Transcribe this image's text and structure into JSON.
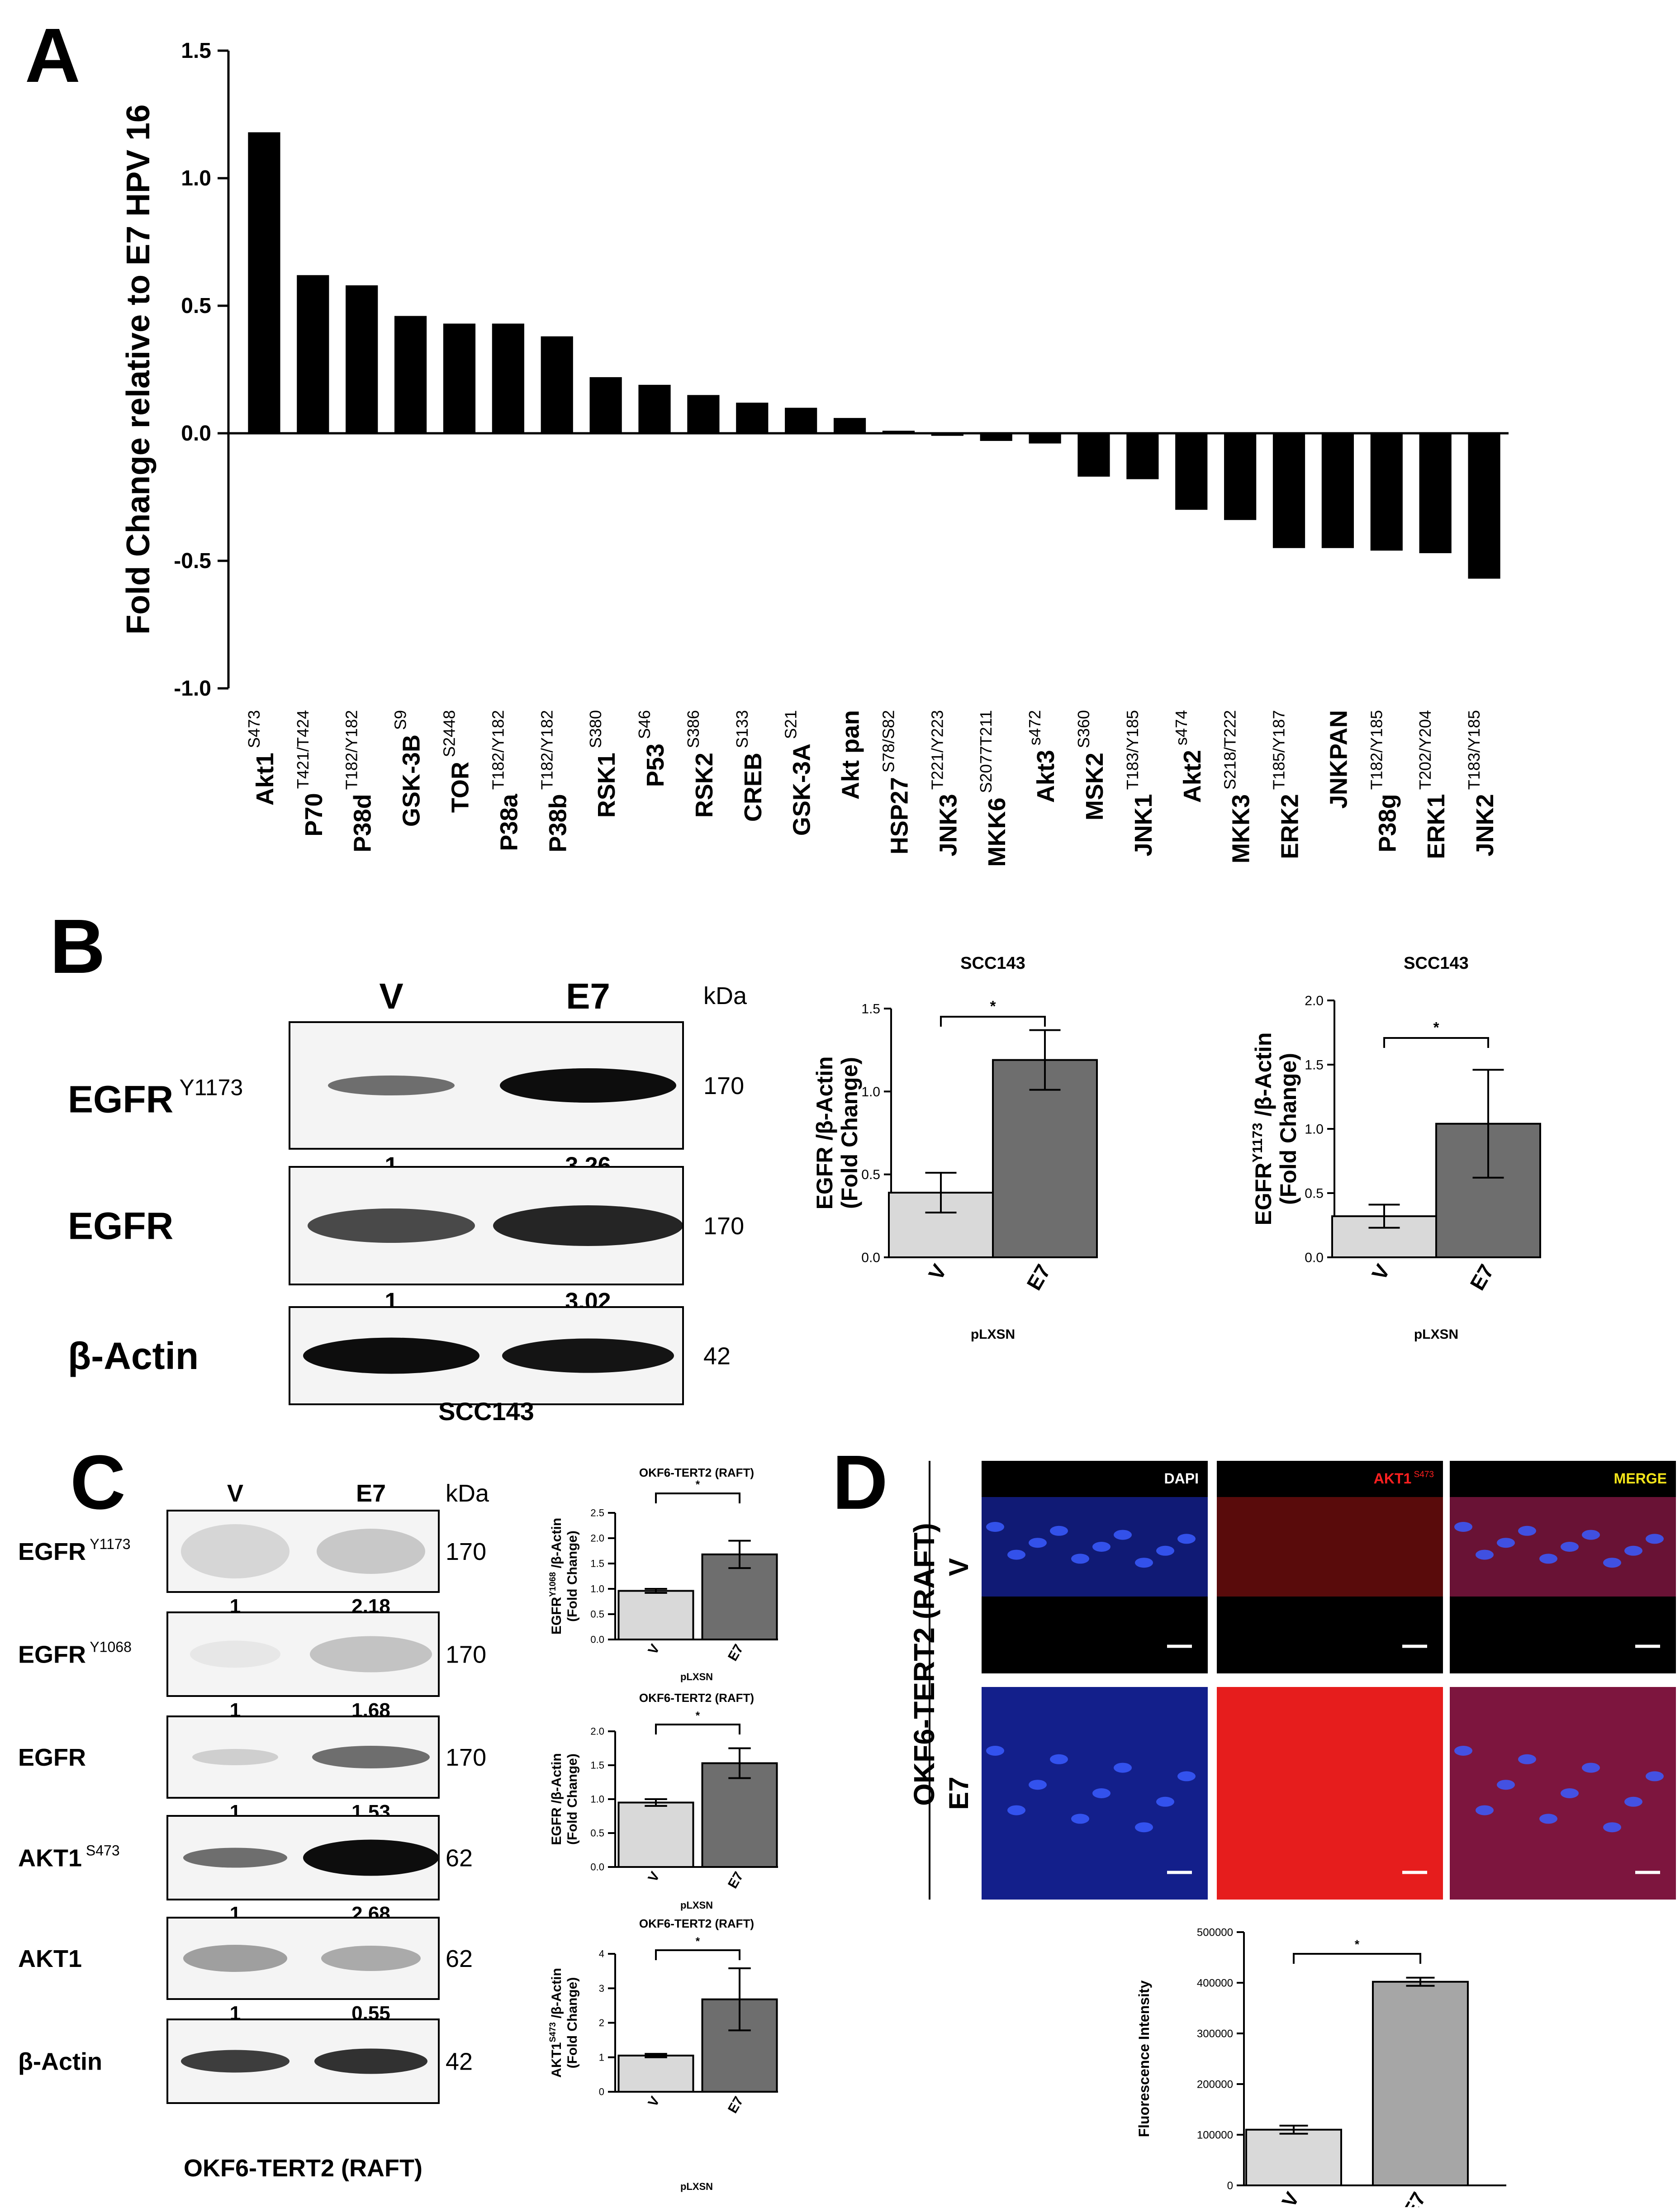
{
  "colors": {
    "bar_black": "#000000",
    "bar_light": "#d9d9d9",
    "bar_dark": "#6e6e6e",
    "bar_mid": "#a6a6a6",
    "dapi": "#1d2fd6",
    "akt_red": "#ff2020",
    "merge_yellow": "#f2e41a"
  },
  "panel_letters": {
    "a": "A",
    "b": "B",
    "c": "C",
    "d": "D"
  },
  "chart_data": [
    {
      "panel": "A",
      "type": "bar",
      "ylabel": "Fold Change relative to E7 HPV 16",
      "ylim": [
        -1.0,
        1.5
      ],
      "yticks": [
        1.5,
        1.0,
        0.5,
        0.0,
        -0.5,
        -1.0
      ],
      "ytick_labels": [
        "1.5",
        "1.0",
        "0.5",
        "0.0",
        "-0.5",
        "-1.0"
      ],
      "categories": [
        {
          "name": "Akt1",
          "site": "S473",
          "value": 1.18
        },
        {
          "name": "P70",
          "site": "T421/T424",
          "value": 0.62
        },
        {
          "name": "P38d",
          "site": "T182/Y182",
          "value": 0.58
        },
        {
          "name": "GSK-3B",
          "site": "S9",
          "value": 0.46
        },
        {
          "name": "TOR",
          "site": "S2448",
          "value": 0.43
        },
        {
          "name": "P38a",
          "site": "T182/Y182",
          "value": 0.43
        },
        {
          "name": "P38b",
          "site": "T182/Y182",
          "value": 0.38
        },
        {
          "name": "RSK1",
          "site": "S380",
          "value": 0.22
        },
        {
          "name": "P53",
          "site": "S46",
          "value": 0.19
        },
        {
          "name": "RSK2",
          "site": "S386",
          "value": 0.15
        },
        {
          "name": "CREB",
          "site": "S133",
          "value": 0.12
        },
        {
          "name": "GSK-3A",
          "site": "S21",
          "value": 0.1
        },
        {
          "name": "Akt pan",
          "site": "",
          "value": 0.06
        },
        {
          "name": "HSP27",
          "site": "S78/S82",
          "value": 0.01
        },
        {
          "name": "JNK3",
          "site": "T221/Y223",
          "value": -0.01
        },
        {
          "name": "MKK6",
          "site": "S2077T211",
          "value": -0.03
        },
        {
          "name": "Akt3",
          "site": "s472",
          "value": -0.04
        },
        {
          "name": "MSK2",
          "site": "S360",
          "value": -0.17
        },
        {
          "name": "JNK1",
          "site": "T183/Y185",
          "value": -0.18
        },
        {
          "name": "Akt2",
          "site": "s474",
          "value": -0.3
        },
        {
          "name": "MKK3",
          "site": "S218/T222",
          "value": -0.34
        },
        {
          "name": "ERK2",
          "site": "T185/Y187",
          "value": -0.45
        },
        {
          "name": "JNKPAN",
          "site": "",
          "value": -0.45
        },
        {
          "name": "P38g",
          "site": "T182/Y185",
          "value": -0.46
        },
        {
          "name": "ERK1",
          "site": "T202/Y204",
          "value": -0.47
        },
        {
          "name": "JNK2",
          "site": "T183/Y185",
          "value": -0.57
        }
      ]
    },
    {
      "panel": "B1",
      "type": "bar",
      "title": "SCC143",
      "ylabel_line1": "EGFR /β-Actin",
      "ylabel_line2": "(Fold Change)",
      "xlabel": "pLXSN",
      "ylim": [
        0,
        1.5
      ],
      "yticks": [
        0,
        0.5,
        1.0,
        1.5
      ],
      "ytick_labels": [
        "0.0",
        "0.5",
        "1.0",
        "1.5"
      ],
      "categories": [
        "V",
        "E7"
      ],
      "values": [
        0.39,
        1.19
      ],
      "errors": [
        0.12,
        0.18
      ],
      "significance": "*"
    },
    {
      "panel": "B2",
      "type": "bar",
      "title": "SCC143",
      "ylabel_line1": "EGFR Y1173 /β-Actin",
      "ylabel_line2": "(Fold Change)",
      "xlabel": "pLXSN",
      "ylim": [
        0,
        2.0
      ],
      "yticks": [
        0,
        0.5,
        1.0,
        1.5,
        2.0
      ],
      "ytick_labels": [
        "0.0",
        "0.5",
        "1.0",
        "1.5",
        "2.0"
      ],
      "categories": [
        "V",
        "E7"
      ],
      "values": [
        0.32,
        1.04
      ],
      "errors": [
        0.09,
        0.42
      ],
      "significance": "*"
    },
    {
      "panel": "C1",
      "type": "bar",
      "title": "OKF6-TERT2 (RAFT)",
      "ylabel_line1": "EGFRY1068 /β-Actin",
      "ylabel_line2": "(Fold Change)",
      "xlabel": "pLXSN",
      "ylim": [
        0,
        2.5
      ],
      "yticks": [
        0,
        0.5,
        1.0,
        1.5,
        2.0,
        2.5
      ],
      "ytick_labels": [
        "0.0",
        "0.5",
        "1.0",
        "1.5",
        "2.0",
        "2.5"
      ],
      "categories": [
        "V",
        "E7"
      ],
      "values": [
        0.96,
        1.68
      ],
      "errors": [
        0.04,
        0.27
      ],
      "significance": "*"
    },
    {
      "panel": "C2",
      "type": "bar",
      "title": "OKF6-TERT2 (RAFT)",
      "ylabel_line1": "EGFR /β-Actin",
      "ylabel_line2": "(Fold Change)",
      "xlabel": "pLXSN",
      "ylim": [
        0,
        2.0
      ],
      "yticks": [
        0,
        0.5,
        1.0,
        1.5,
        2.0
      ],
      "ytick_labels": [
        "0.0",
        "0.5",
        "1.0",
        "1.5",
        "2.0"
      ],
      "categories": [
        "V",
        "E7"
      ],
      "values": [
        0.95,
        1.53
      ],
      "errors": [
        0.05,
        0.22
      ],
      "significance": "*"
    },
    {
      "panel": "C3",
      "type": "bar",
      "title": "OKF6-TERT2 (RAFT)",
      "ylabel_line1": "AKT1S473 /β-Actin",
      "ylabel_line2": "(Fold Change)",
      "xlabel": "pLXSN",
      "ylim": [
        0,
        4
      ],
      "yticks": [
        0,
        1,
        2,
        3,
        4
      ],
      "ytick_labels": [
        "0",
        "1",
        "2",
        "3",
        "4"
      ],
      "categories": [
        "V",
        "E7"
      ],
      "values": [
        1.05,
        2.68
      ],
      "errors": [
        0.05,
        0.9
      ],
      "significance": "*"
    },
    {
      "panel": "D",
      "type": "bar",
      "ylabel_line1": "Fluorescence Intensity",
      "ylabel_line2": "",
      "xlabel": "",
      "ylim": [
        0,
        500000
      ],
      "yticks": [
        0,
        100000,
        200000,
        300000,
        400000,
        500000
      ],
      "ytick_labels": [
        "0",
        "100000",
        "200000",
        "300000",
        "400000",
        "500000"
      ],
      "categories": [
        "V",
        "E7"
      ],
      "values": [
        110000,
        402000
      ],
      "errors": [
        8000,
        8000
      ],
      "significance": "*"
    }
  ],
  "blot_b": {
    "lanes": [
      "V",
      "E7"
    ],
    "kda_label": "kDa",
    "cell_line": "SCC143",
    "rows": [
      {
        "label": "EGFR",
        "sup": "Y1173",
        "kda": "170",
        "quant": [
          "1",
          "3,26"
        ]
      },
      {
        "label": "EGFR",
        "sup": "",
        "kda": "170",
        "quant": [
          "1",
          "3,02"
        ]
      },
      {
        "label": "β-Actin",
        "sup": "",
        "kda": "42",
        "quant": []
      }
    ]
  },
  "blot_c": {
    "lanes": [
      "V",
      "E7"
    ],
    "kda_label": "kDa",
    "cell_line": "OKF6-TERT2 (RAFT)",
    "rows": [
      {
        "label": "EGFR",
        "sup": "Y1173",
        "kda": "170",
        "quant": [
          "1",
          "2,18"
        ]
      },
      {
        "label": "EGFR",
        "sup": "Y1068",
        "kda": "170",
        "quant": [
          "1",
          "1,68"
        ]
      },
      {
        "label": "EGFR",
        "sup": "",
        "kda": "170",
        "quant": [
          "1",
          "1,53"
        ]
      },
      {
        "label": "AKT1",
        "sup": "S473",
        "kda": "62",
        "quant": [
          "1",
          "2,68"
        ]
      },
      {
        "label": "AKT1",
        "sup": "",
        "kda": "62",
        "quant": [
          "1",
          "0,55"
        ]
      },
      {
        "label": "β-Actin",
        "sup": "",
        "kda": "42",
        "quant": []
      }
    ]
  },
  "micro_d": {
    "side_title": "OKF6-TERT2 (RAFT)",
    "row_labels": [
      "V",
      "E7"
    ],
    "columns": [
      {
        "label": "DAPI",
        "sup": ""
      },
      {
        "label": "AKT1",
        "sup": "S473"
      },
      {
        "label": "MERGE",
        "sup": ""
      }
    ]
  }
}
